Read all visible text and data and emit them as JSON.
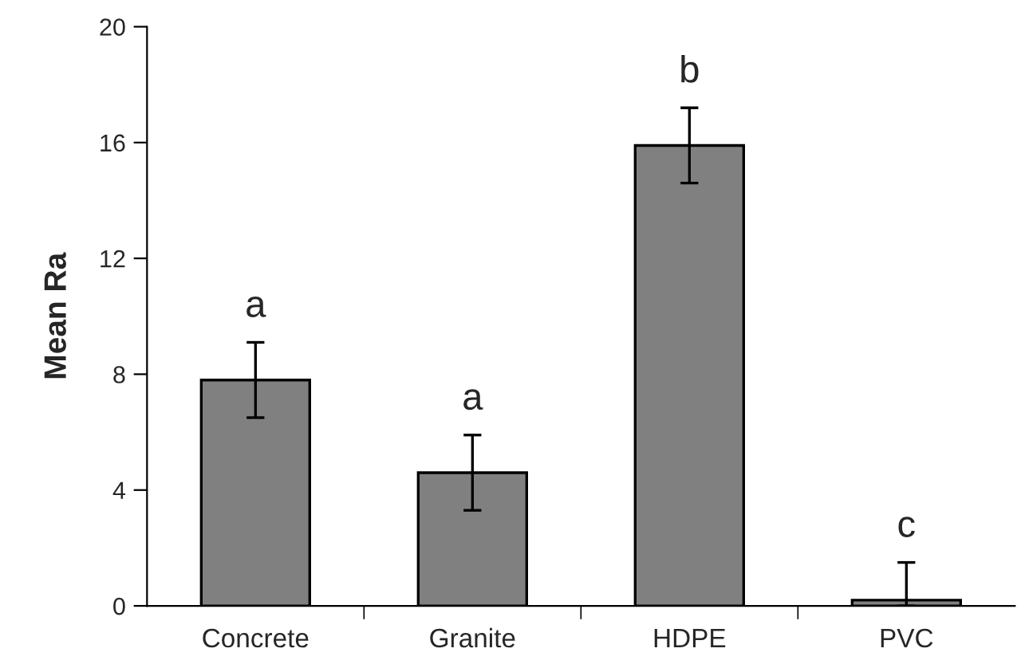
{
  "chart_data": {
    "type": "bar",
    "ylabel": "Mean Ra",
    "categories": [
      "Concrete",
      "Granite",
      "HDPE",
      "PVC"
    ],
    "values": [
      7.8,
      4.6,
      15.9,
      0.2
    ],
    "errors": [
      1.3,
      1.3,
      1.3,
      [
        0,
        1.5
      ]
    ],
    "color": "#808080",
    "ylim": [
      0,
      20
    ],
    "yticks": [
      0,
      4,
      8,
      12,
      16,
      20
    ],
    "grid": false,
    "legend": false,
    "annotations": [
      "a",
      "a",
      "b",
      "c"
    ]
  }
}
